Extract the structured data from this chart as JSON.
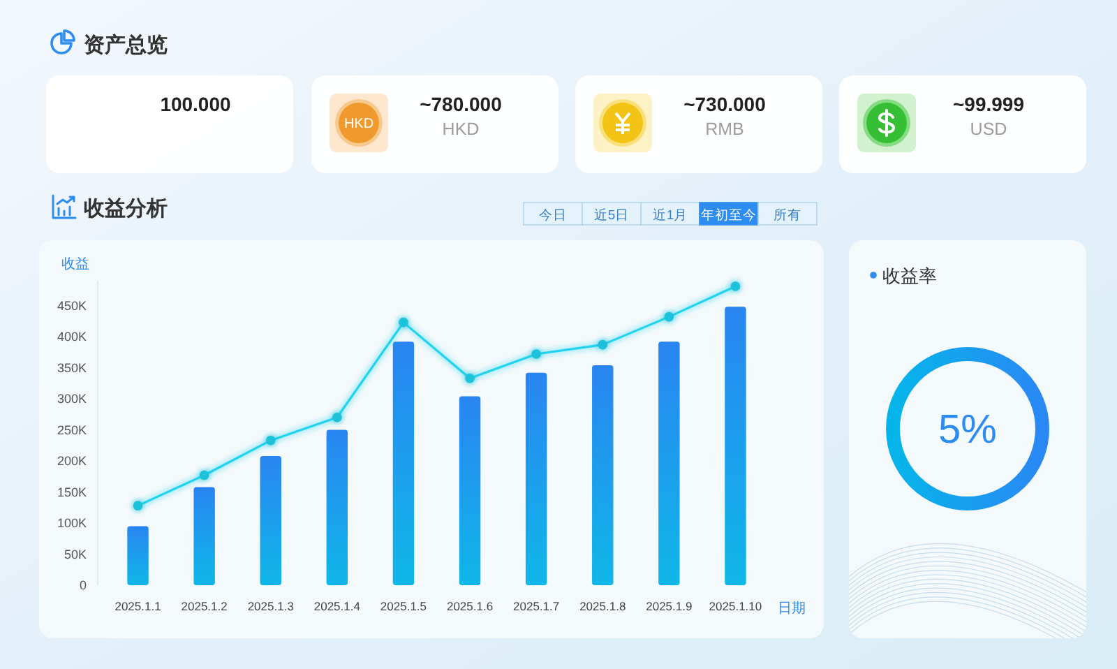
{
  "chart_data": [
    {
      "type": "other",
      "title": "资产总览",
      "annotations": [
        "100.000",
        "HKD",
        "~780.000",
        "HKD",
        "~730.000",
        "RMB",
        "~99.999",
        "USD"
      ]
    },
    {
      "type": "bar",
      "title": "收益分析",
      "ylabel": "收益",
      "xlabel": "日期",
      "categories": [
        "2025.1.1",
        "2025.1.2",
        "2025.1.3",
        "2025.1.4",
        "2025.1.5",
        "2025.1.6",
        "2025.1.7",
        "2025.1.8",
        "2025.1.9",
        "2025.1.10"
      ],
      "series": [
        {
          "type": "bar",
          "color": "#169ef0",
          "values": [
            95000,
            158000,
            208000,
            250000,
            392000,
            304000,
            342000,
            354000,
            392000,
            448000
          ]
        },
        {
          "type": "line",
          "color": "#22d3ee",
          "values": [
            128000,
            177000,
            233000,
            270000,
            423000,
            333000,
            372000,
            387000,
            432000,
            481000
          ]
        }
      ],
      "marker": "circle",
      "ylim": [
        0,
        490000
      ],
      "yticks": [
        0,
        {
          "value": 50000,
          "label": "50K"
        },
        {
          "value": 100000,
          "label": "100K"
        },
        {
          "value": 150000,
          "label": "150K"
        },
        {
          "value": 200000,
          "label": "200K"
        },
        {
          "value": 250000,
          "label": "250K"
        },
        {
          "value": 300000,
          "label": "300K"
        },
        {
          "value": 350000,
          "label": "350K"
        },
        {
          "value": 400000,
          "label": "400K"
        },
        {
          "value": 450000,
          "label": "450K"
        }
      ],
      "annotations": [
        "今日",
        "近5日",
        "近1月",
        "年初至今",
        "所有"
      ]
    },
    {
      "type": "other",
      "title": "收益率",
      "annotations": [
        "5%"
      ]
    }
  ]
}
